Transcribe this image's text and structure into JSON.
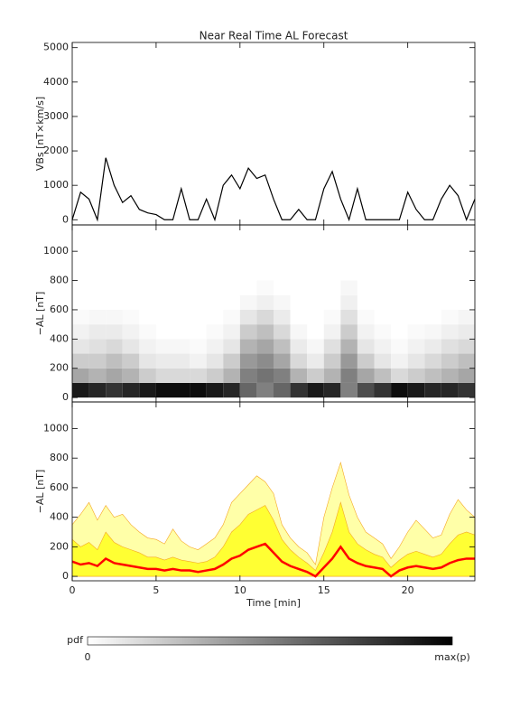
{
  "chart_data": [
    {
      "type": "line",
      "title": "Near Real Time AL Forecast",
      "ylabel": "VBs [nT×km/s]",
      "x": [
        0,
        0.5,
        1,
        1.5,
        2,
        2.5,
        3,
        3.5,
        4,
        4.5,
        5,
        5.5,
        6,
        6.5,
        7,
        7.5,
        8,
        8.5,
        9,
        9.5,
        10,
        10.5,
        11,
        11.5,
        12,
        12.5,
        13,
        13.5,
        14,
        14.5,
        15,
        15.5,
        16,
        16.5,
        17,
        17.5,
        18,
        18.5,
        19,
        19.5,
        20,
        20.5,
        21,
        21.5,
        22,
        22.5,
        23,
        23.5,
        24
      ],
      "series": [
        {
          "color": "#000000",
          "values": [
            0,
            800,
            600,
            0,
            1800,
            1000,
            500,
            700,
            300,
            200,
            150,
            0,
            0,
            900,
            0,
            0,
            600,
            0,
            1000,
            1300,
            900,
            1500,
            1200,
            1300,
            600,
            0,
            0,
            300,
            0,
            0,
            900,
            1400,
            600,
            0,
            900,
            0,
            0,
            0,
            0,
            0,
            800,
            300,
            0,
            0,
            600,
            1000,
            700,
            0,
            600
          ]
        }
      ],
      "xlim": [
        0,
        24
      ],
      "ylim": [
        -150,
        5150
      ],
      "yticks": [
        0,
        1000,
        2000,
        3000,
        4000,
        5000
      ]
    },
    {
      "type": "heatmap",
      "ylabel": "−AL [nT]",
      "xbins": [
        0,
        1,
        2,
        3,
        4,
        5,
        6,
        7,
        8,
        9,
        10,
        11,
        12,
        13,
        14,
        15,
        16,
        17,
        18,
        19,
        20,
        21,
        22,
        23,
        24
      ],
      "ybins": [
        0,
        100,
        200,
        300,
        400,
        500,
        600,
        700,
        800
      ],
      "values": [
        [
          0.9,
          0.85,
          0.8,
          0.85,
          0.9,
          0.95,
          0.95,
          0.95,
          0.9,
          0.85,
          0.6,
          0.5,
          0.6,
          0.8,
          0.9,
          0.85,
          0.5,
          0.7,
          0.8,
          0.95,
          0.9,
          0.85,
          0.85,
          0.8
        ],
        [
          0.35,
          0.3,
          0.35,
          0.3,
          0.2,
          0.15,
          0.15,
          0.15,
          0.2,
          0.3,
          0.5,
          0.55,
          0.5,
          0.3,
          0.2,
          0.3,
          0.5,
          0.35,
          0.25,
          0.15,
          0.2,
          0.25,
          0.3,
          0.35
        ],
        [
          0.2,
          0.2,
          0.25,
          0.2,
          0.1,
          0.08,
          0.08,
          0.05,
          0.1,
          0.2,
          0.4,
          0.45,
          0.35,
          0.15,
          0.08,
          0.2,
          0.4,
          0.2,
          0.1,
          0.05,
          0.1,
          0.15,
          0.2,
          0.25
        ],
        [
          0.1,
          0.12,
          0.15,
          0.1,
          0.05,
          0.03,
          0.03,
          0.02,
          0.05,
          0.1,
          0.3,
          0.35,
          0.25,
          0.08,
          0.03,
          0.12,
          0.3,
          0.1,
          0.05,
          0.02,
          0.05,
          0.08,
          0.12,
          0.15
        ],
        [
          0.05,
          0.08,
          0.08,
          0.05,
          0.02,
          0,
          0,
          0,
          0.02,
          0.05,
          0.2,
          0.25,
          0.15,
          0.03,
          0,
          0.05,
          0.2,
          0.05,
          0.02,
          0,
          0.02,
          0.03,
          0.06,
          0.08
        ],
        [
          0.02,
          0.03,
          0.03,
          0.02,
          0,
          0,
          0,
          0,
          0,
          0.02,
          0.1,
          0.15,
          0.08,
          0,
          0,
          0.02,
          0.12,
          0.02,
          0,
          0,
          0,
          0,
          0.02,
          0.04
        ],
        [
          0,
          0,
          0,
          0,
          0,
          0,
          0,
          0,
          0,
          0,
          0.03,
          0.06,
          0.03,
          0,
          0,
          0,
          0.06,
          0,
          0,
          0,
          0,
          0,
          0,
          0
        ],
        [
          0,
          0,
          0,
          0,
          0,
          0,
          0,
          0,
          0,
          0,
          0,
          0.02,
          0,
          0,
          0,
          0,
          0.03,
          0,
          0,
          0,
          0,
          0,
          0,
          0
        ]
      ],
      "xlim": [
        0,
        24
      ],
      "ylim": [
        -30,
        1180
      ],
      "yticks": [
        0,
        200,
        400,
        600,
        800,
        1000
      ],
      "colorbar": {
        "label": "pdf",
        "min_label": "0",
        "max_label": "max(p)"
      }
    },
    {
      "type": "area",
      "ylabel": "−AL [nT]",
      "xlabel": "Time [min]",
      "x": [
        0,
        0.5,
        1,
        1.5,
        2,
        2.5,
        3,
        3.5,
        4,
        4.5,
        5,
        5.5,
        6,
        6.5,
        7,
        7.5,
        8,
        8.5,
        9,
        9.5,
        10,
        10.5,
        11,
        11.5,
        12,
        12.5,
        13,
        13.5,
        14,
        14.5,
        15,
        15.5,
        16,
        16.5,
        17,
        17.5,
        18,
        18.5,
        19,
        19.5,
        20,
        20.5,
        21,
        21.5,
        22,
        22.5,
        23,
        23.5,
        24
      ],
      "series": [
        {
          "color": "#ffffa8",
          "kind": "area",
          "values": [
            350,
            420,
            500,
            380,
            480,
            400,
            420,
            350,
            300,
            260,
            250,
            220,
            320,
            240,
            200,
            180,
            220,
            260,
            350,
            500,
            560,
            620,
            680,
            640,
            560,
            350,
            260,
            200,
            160,
            80,
            400,
            600,
            770,
            550,
            400,
            300,
            260,
            220,
            120,
            200,
            300,
            380,
            320,
            260,
            280,
            420,
            520,
            450,
            400
          ]
        },
        {
          "color": "#ffff33",
          "kind": "area",
          "values": [
            250,
            200,
            230,
            180,
            300,
            230,
            200,
            180,
            160,
            130,
            130,
            110,
            130,
            110,
            100,
            90,
            100,
            130,
            200,
            300,
            350,
            420,
            450,
            480,
            380,
            250,
            180,
            130,
            90,
            40,
            160,
            300,
            500,
            300,
            220,
            180,
            150,
            130,
            60,
            110,
            150,
            170,
            150,
            130,
            150,
            220,
            280,
            300,
            280
          ]
        },
        {
          "color": "#ff0000",
          "kind": "line",
          "values": [
            100,
            80,
            90,
            70,
            120,
            90,
            80,
            70,
            60,
            50,
            50,
            40,
            50,
            40,
            40,
            30,
            40,
            50,
            80,
            120,
            140,
            180,
            200,
            220,
            160,
            100,
            70,
            50,
            30,
            0,
            60,
            120,
            200,
            120,
            90,
            70,
            60,
            50,
            0,
            40,
            60,
            70,
            60,
            50,
            60,
            90,
            110,
            120,
            120
          ]
        }
      ],
      "xlim": [
        0,
        24
      ],
      "ylim": [
        -30,
        1180
      ],
      "yticks": [
        0,
        200,
        400,
        600,
        800,
        1000
      ],
      "xticks": [
        0,
        5,
        10,
        15,
        20
      ]
    }
  ]
}
